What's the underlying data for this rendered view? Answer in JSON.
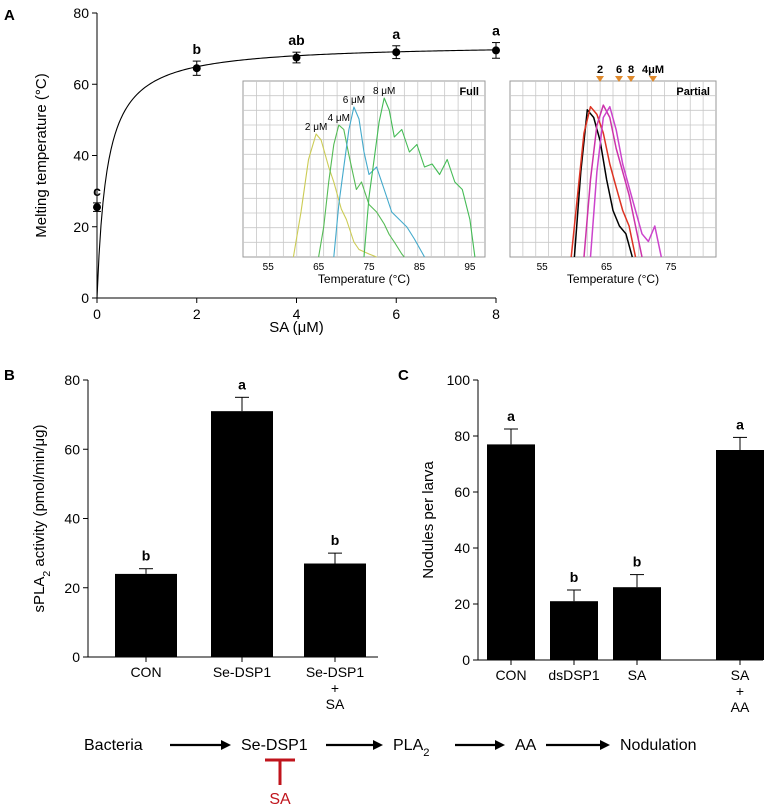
{
  "panels": {
    "a_label": "A",
    "b_label": "B",
    "c_label": "C"
  },
  "chart_data": [
    {
      "id": "A",
      "type": "line",
      "title": "",
      "xlabel": "SA (μM)",
      "ylabel": "Melting temperature (°C)",
      "xlim": [
        0,
        8
      ],
      "ylim": [
        0,
        80
      ],
      "xticks": [
        0,
        2,
        4,
        6,
        8
      ],
      "yticks": [
        0,
        20,
        40,
        60,
        80
      ],
      "x": [
        0,
        2,
        4,
        6,
        8
      ],
      "y": [
        25.5,
        64.5,
        67.5,
        69,
        69.5
      ],
      "errors": [
        1.2,
        2,
        1.5,
        1.8,
        2.2
      ],
      "letters": [
        "c",
        "b",
        "ab",
        "a",
        "a"
      ],
      "fit": {
        "vmax": 71.4,
        "km": 0.2
      }
    },
    {
      "id": "A-inset-full",
      "type": "line",
      "title": "Full",
      "xlabel": "Temperature (°C)",
      "xlim": [
        50,
        98
      ],
      "xticks": [
        55,
        65,
        75,
        85,
        95
      ],
      "series": [
        {
          "name": "2 μM",
          "color": "#cccc55",
          "x": [
            60,
            61.5,
            63,
            64.5,
            65.5,
            67,
            68,
            69.5,
            70.5,
            72,
            73,
            75,
            76.5
          ],
          "y": [
            0,
            0.3,
            0.65,
            0.82,
            0.78,
            0.6,
            0.5,
            0.32,
            0.25,
            0.1,
            0.05,
            0.02,
            0
          ]
        },
        {
          "name": "4 μM",
          "color": "#55bb55",
          "x": [
            65,
            66,
            67,
            68,
            69,
            70,
            71,
            72.5,
            73.5,
            75,
            76.5,
            78,
            79,
            80,
            81.5,
            82
          ],
          "y": [
            0,
            0.2,
            0.5,
            0.75,
            0.88,
            0.85,
            0.68,
            0.45,
            0.5,
            0.35,
            0.3,
            0.22,
            0.15,
            0.1,
            0.02,
            0
          ]
        },
        {
          "name": "6 μM",
          "color": "#44aacc",
          "x": [
            68,
            69,
            70,
            71,
            72,
            73,
            74,
            75,
            76.5,
            78,
            79.5,
            81,
            82.5,
            84,
            85.5,
            86
          ],
          "y": [
            0,
            0.35,
            0.6,
            0.85,
            1.0,
            0.92,
            0.7,
            0.55,
            0.6,
            0.45,
            0.3,
            0.25,
            0.2,
            0.12,
            0.03,
            0
          ]
        },
        {
          "name": "8 μM",
          "color": "#44bb55",
          "x": [
            74,
            75,
            76,
            77,
            78,
            79,
            80,
            81.5,
            83,
            84.5,
            86,
            87.5,
            89,
            90.5,
            92,
            93.5,
            95,
            96
          ],
          "y": [
            0,
            0.4,
            0.65,
            0.9,
            1.06,
            0.98,
            0.8,
            0.85,
            0.7,
            0.75,
            0.6,
            0.62,
            0.55,
            0.65,
            0.5,
            0.45,
            0.25,
            0
          ]
        }
      ]
    },
    {
      "id": "A-inset-partial",
      "type": "line",
      "title": "Partial",
      "xlabel": "Temperature (°C)",
      "xlim": [
        50,
        82
      ],
      "xticks": [
        55,
        65,
        75
      ],
      "series": [
        {
          "name": "2",
          "color": "#000000",
          "x": [
            60,
            61,
            62,
            63,
            64,
            65,
            66,
            67,
            68,
            69
          ],
          "y": [
            0,
            0.55,
            0.95,
            0.9,
            0.75,
            0.5,
            0.3,
            0.2,
            0.15,
            0
          ]
        },
        {
          "name": "6",
          "color": "#dd3322",
          "x": [
            59.5,
            60.5,
            61.5,
            62.5,
            63.5,
            64.5,
            65.5,
            66.5,
            67.5,
            68.5,
            69.5
          ],
          "y": [
            0,
            0.4,
            0.8,
            0.97,
            0.92,
            0.8,
            0.6,
            0.45,
            0.3,
            0.2,
            0
          ]
        },
        {
          "name": "8",
          "color": "#cc33aa",
          "x": [
            61.5,
            62.5,
            63.5,
            64.5,
            65.5,
            66.5,
            67.5,
            68.5,
            69.5,
            70.5
          ],
          "y": [
            0,
            0.5,
            0.85,
            0.98,
            0.9,
            0.7,
            0.55,
            0.4,
            0.2,
            0
          ]
        },
        {
          "name": "4μM",
          "color": "#cc44cc",
          "x": [
            62.5,
            63.5,
            64.5,
            65.5,
            66.5,
            67.5,
            68.5,
            69.5,
            70.5,
            71.5,
            72.5,
            73.5
          ],
          "y": [
            0,
            0.55,
            0.9,
            0.97,
            0.82,
            0.6,
            0.45,
            0.3,
            0.15,
            0.1,
            0.2,
            0
          ]
        }
      ]
    },
    {
      "id": "B",
      "type": "bar",
      "categories": [
        "CON",
        "Se-DSP1",
        "Se-DSP1\n+\nSA"
      ],
      "values": [
        24,
        71,
        27
      ],
      "errors": [
        1.5,
        4,
        3
      ],
      "letters": [
        "b",
        "a",
        "b"
      ],
      "xlabel": "",
      "ylabel": "sPLA2 activity (pmol/min/μg)",
      "ylim": [
        0,
        80
      ],
      "yticks": [
        0,
        20,
        40,
        60,
        80
      ]
    },
    {
      "id": "C",
      "type": "bar",
      "categories": [
        "CON",
        "dsDSP1",
        "SA",
        "SA\n+\nAA"
      ],
      "values": [
        77,
        21,
        26,
        75
      ],
      "errors": [
        5.5,
        4,
        4.5,
        4.5
      ],
      "letters": [
        "a",
        "b",
        "b",
        "a"
      ],
      "xlabel": "",
      "ylabel": "Nodules per larva",
      "ylim": [
        0,
        100
      ],
      "yticks": [
        0,
        20,
        40,
        60,
        80,
        100
      ]
    }
  ],
  "pathway": {
    "steps": [
      "Bacteria",
      "Se-DSP1",
      "PLA2",
      "AA",
      "Nodulation"
    ],
    "inhibitor": "SA",
    "inhibitor_color": "#c0141c"
  }
}
